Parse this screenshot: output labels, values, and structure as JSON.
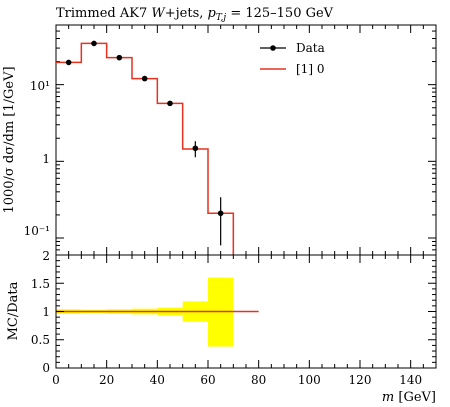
{
  "chart_data": {
    "type": "line",
    "title": "Trimmed AK7 W+jets, p_{T,j} = 125–150 GeV",
    "title_parts": {
      "prefix": "Trimmed AK7 ",
      "w": "W",
      "jets": "+jets, ",
      "p": "p",
      "sub": "T,j",
      "range": " = 125–150 GeV"
    },
    "xlabel": "m [GeV]",
    "xlabel_parts": {
      "var": "m",
      "unit": " [GeV]"
    },
    "ylabel": "1000/σ dσ/dm [1/GeV]",
    "ylabel_ratio": "MC/Data",
    "xlim": [
      0,
      150
    ],
    "ylim": [
      0.06,
      60
    ],
    "yscale": "log",
    "ratio_ylim": [
      0,
      2
    ],
    "x_ticks": [
      "0",
      "20",
      "40",
      "60",
      "80",
      "100",
      "120",
      "140"
    ],
    "y_ticks_main": [
      "10⁻¹",
      "1",
      "10¹"
    ],
    "y_ticks_ratio": [
      "0",
      "0.5",
      "1",
      "1.5",
      "2"
    ],
    "legend": {
      "position": "top-right",
      "data_label": "Data",
      "mc_label": "[1] 0"
    },
    "colors": {
      "data": "#000000",
      "mc": "#e8311f",
      "band": "#ffff00"
    },
    "series": [
      {
        "name": "Data",
        "x": [
          5,
          15,
          25,
          35,
          45,
          55,
          65
        ],
        "y": [
          19.5,
          34.5,
          22.5,
          12.0,
          5.7,
          1.48,
          0.21
        ],
        "err": [
          0.6,
          0.8,
          0.7,
          0.5,
          0.3,
          0.35,
          0.13
        ]
      },
      {
        "name": "[1] 0",
        "bin_edges": [
          0,
          10,
          20,
          30,
          40,
          50,
          60,
          70
        ],
        "values": [
          19.5,
          34.5,
          22.5,
          12.0,
          5.7,
          1.45,
          0.21
        ]
      }
    ],
    "ratio": {
      "bin_edges": [
        0,
        10,
        20,
        30,
        40,
        50,
        60,
        70,
        80
      ],
      "mc_over_data": [
        1,
        1,
        1,
        1,
        1,
        1,
        1,
        1
      ],
      "band_lo": [
        0.96,
        0.97,
        0.96,
        0.95,
        0.93,
        0.82,
        0.38,
        1
      ],
      "band_hi": [
        1.04,
        1.03,
        1.04,
        1.05,
        1.07,
        1.18,
        1.6,
        1
      ]
    }
  }
}
